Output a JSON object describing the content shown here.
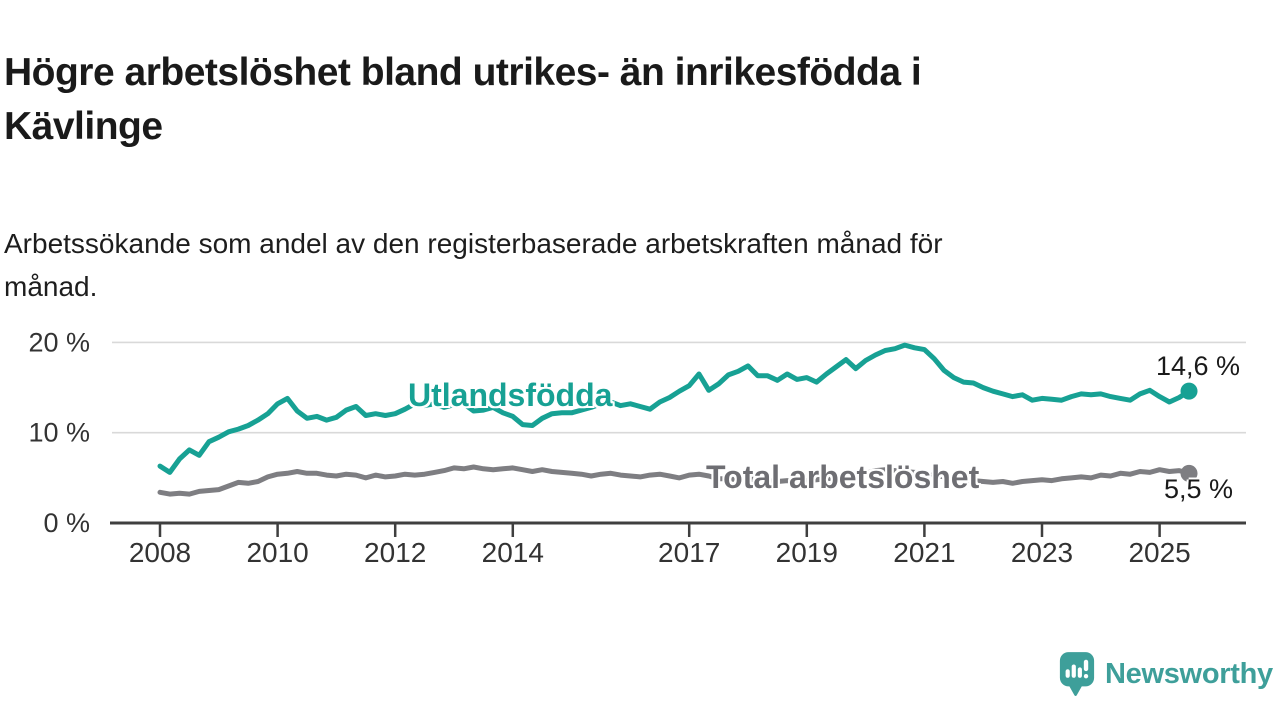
{
  "header": {
    "title": "Högre arbetslöshet bland utrikes- än inrikesfödda i\nKävlinge",
    "subtitle": "Arbetssökande som andel av den registerbaserade arbetskraften månad för\nmånad."
  },
  "chart_data": {
    "type": "line",
    "title": "Högre arbetslöshet bland utrikes- än inrikesfödda i Kävlinge",
    "subtitle": "Arbetssökande som andel av den registerbaserade arbetskraften månad för månad.",
    "xlabel": "",
    "ylabel": "",
    "unit": "%",
    "grid": "horizontal",
    "legend_position": "inline-labels",
    "x_range_years": [
      2007.6,
      2025.9
    ],
    "ylim": [
      0,
      22
    ],
    "y_axis": {
      "ticks": [
        {
          "value": 0,
          "label": "0 %"
        },
        {
          "value": 10,
          "label": "10 %"
        },
        {
          "value": 20,
          "label": "20 %"
        }
      ]
    },
    "x_axis": {
      "ticks": [
        {
          "year": 2008,
          "label": "2008"
        },
        {
          "year": 2010,
          "label": "2010"
        },
        {
          "year": 2012,
          "label": "2012"
        },
        {
          "year": 2014,
          "label": "2014"
        },
        {
          "year": 2017,
          "label": "2017"
        },
        {
          "year": 2019,
          "label": "2019"
        },
        {
          "year": 2021,
          "label": "2021"
        },
        {
          "year": 2023,
          "label": "2023"
        },
        {
          "year": 2025,
          "label": "2025"
        }
      ]
    },
    "series": [
      {
        "name": "Utlandsfödda",
        "color": "#17a194",
        "label_color": "#17a194",
        "end_label": "14,6 %",
        "end_value": 14.6,
        "x_start_year": 2008.0,
        "x_step_years": 0.16667,
        "y": [
          6.3,
          5.6,
          7.1,
          8.1,
          7.5,
          9.0,
          9.5,
          10.1,
          10.4,
          10.8,
          11.4,
          12.1,
          13.2,
          13.8,
          12.4,
          11.6,
          11.8,
          11.4,
          11.7,
          12.5,
          12.9,
          11.9,
          12.1,
          11.9,
          12.1,
          12.6,
          13.2,
          13.0,
          13.2,
          12.8,
          13.1,
          13.2,
          12.4,
          12.5,
          12.8,
          12.2,
          11.8,
          10.9,
          10.8,
          11.6,
          12.1,
          12.2,
          12.2,
          12.5,
          12.8,
          13.2,
          13.4,
          13.0,
          13.2,
          12.9,
          12.6,
          13.4,
          13.9,
          14.6,
          15.2,
          16.5,
          14.7,
          15.4,
          16.4,
          16.8,
          17.4,
          16.3,
          16.3,
          15.8,
          16.5,
          15.9,
          16.1,
          15.6,
          16.5,
          17.3,
          18.1,
          17.1,
          18.0,
          18.6,
          19.1,
          19.3,
          19.7,
          19.4,
          19.2,
          18.2,
          16.9,
          16.1,
          15.6,
          15.5,
          15.0,
          14.6,
          14.3,
          14.0,
          14.2,
          13.6,
          13.8,
          13.7,
          13.6,
          14.0,
          14.3,
          14.2,
          14.3,
          14.0,
          13.8,
          13.6,
          14.3,
          14.7,
          14.0,
          13.4,
          13.9,
          14.6
        ]
      },
      {
        "name": "Total arbetslöshet",
        "color": "#7e7e82",
        "label_color": "#6e6e73",
        "end_label": "5,5 %",
        "end_value": 5.5,
        "x_start_year": 2008.0,
        "x_step_years": 0.16667,
        "y": [
          3.4,
          3.2,
          3.3,
          3.2,
          3.5,
          3.6,
          3.7,
          4.1,
          4.5,
          4.4,
          4.6,
          5.1,
          5.4,
          5.5,
          5.7,
          5.5,
          5.5,
          5.3,
          5.2,
          5.4,
          5.3,
          5.0,
          5.3,
          5.1,
          5.2,
          5.4,
          5.3,
          5.4,
          5.6,
          5.8,
          6.1,
          6.0,
          6.2,
          6.0,
          5.9,
          6.0,
          6.1,
          5.9,
          5.7,
          5.9,
          5.7,
          5.6,
          5.5,
          5.4,
          5.2,
          5.4,
          5.5,
          5.3,
          5.2,
          5.1,
          5.3,
          5.4,
          5.2,
          5.0,
          5.3,
          5.4,
          5.2,
          4.9,
          4.9,
          4.8,
          4.8,
          4.9,
          4.7,
          4.6,
          4.7,
          4.6,
          4.7,
          4.8,
          4.9,
          5.0,
          5.1,
          5.3,
          5.5,
          5.8,
          5.9,
          5.8,
          5.7,
          5.6,
          5.5,
          5.3,
          5.1,
          4.9,
          4.8,
          4.7,
          4.6,
          4.5,
          4.6,
          4.4,
          4.6,
          4.7,
          4.8,
          4.7,
          4.9,
          5.0,
          5.1,
          5.0,
          5.3,
          5.2,
          5.5,
          5.4,
          5.7,
          5.6,
          5.9,
          5.7,
          5.8,
          5.5
        ]
      }
    ],
    "colors": {
      "grid": "#d9d9d9",
      "axis": "#3f3f3f",
      "tick_text": "#333333"
    }
  },
  "footer": {
    "brand": "Newsworthy",
    "brand_color": "#3e9f9a",
    "logo_icon": "newsworthy-speech-bubble-bar-chart-icon"
  }
}
